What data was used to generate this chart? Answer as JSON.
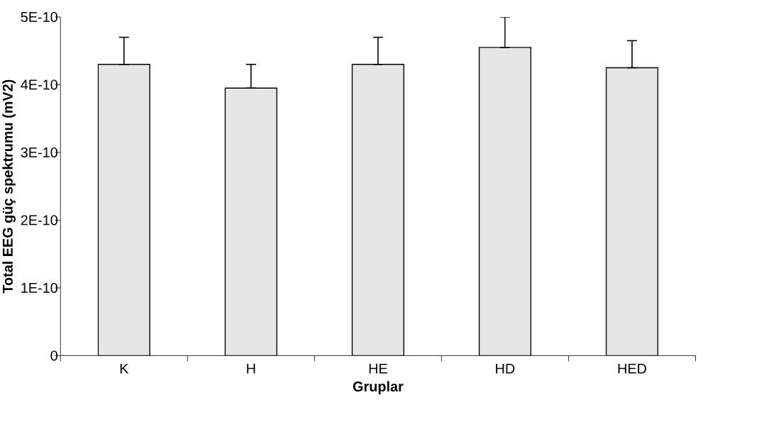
{
  "chart_data": {
    "type": "bar",
    "xlabel": "Gruplar",
    "ylabel": "Total EEG güç spektrumu (mV2)",
    "categories": [
      "K",
      "H",
      "HE",
      "HD",
      "HED"
    ],
    "values": [
      4.3e-10,
      3.95e-10,
      4.3e-10,
      4.55e-10,
      4.25e-10
    ],
    "errors": [
      [
        4.3e-10,
        4.7e-10
      ],
      [
        3.95e-10,
        4.3e-10
      ],
      [
        4.3e-10,
        4.7e-10
      ],
      [
        4.55e-10,
        5e-10
      ],
      [
        4.25e-10,
        4.65e-10
      ]
    ],
    "color": "#e6e6e6",
    "ylim": [
      0,
      5e-10
    ],
    "yticks": [
      0,
      {
        "value": 1e-10,
        "label": "1E-10"
      },
      {
        "value": 2e-10,
        "label": "2E-10"
      },
      {
        "value": 3e-10,
        "label": "3E-10"
      },
      {
        "value": 4e-10,
        "label": "4E-10"
      },
      {
        "value": 5e-10,
        "label": "5E-10"
      }
    ]
  }
}
